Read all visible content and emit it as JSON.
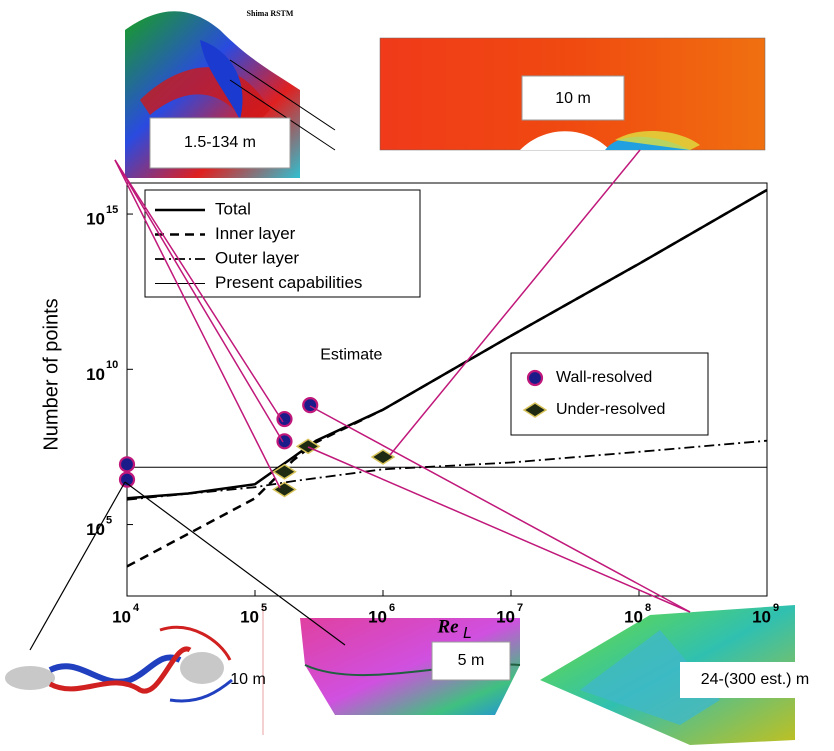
{
  "chart_data": {
    "type": "line",
    "ylabel": "Number of points",
    "xlabel": "Re",
    "xlabel_sub": "L",
    "log_x": true,
    "log_y": true,
    "xlim": [
      10000,
      1000000000
    ],
    "ylim": [
      500,
      1e+16
    ],
    "xticks": [
      {
        "value": 10000,
        "label": "10",
        "sup": "4"
      },
      {
        "value": 100000,
        "label": "10",
        "sup": "5"
      },
      {
        "value": 1000000,
        "label": "10",
        "sup": "6"
      },
      {
        "value": 10000000,
        "label": "10",
        "sup": "7"
      },
      {
        "value": 100000000,
        "label": "10",
        "sup": "8"
      },
      {
        "value": 1000000000,
        "label": "10",
        "sup": "9"
      }
    ],
    "yticks": [
      {
        "value": 100000,
        "label": "10",
        "sup": "5"
      },
      {
        "value": 10000000000,
        "label": "10",
        "sup": "10"
      },
      {
        "value": 1000000000000000.0,
        "label": "10",
        "sup": "15"
      }
    ],
    "series": [
      {
        "name": "Total",
        "style": "solid",
        "color": "#000000",
        "legend": "upper left",
        "x": [
          10000,
          30000,
          100000,
          200000,
          300000,
          1000000,
          10000000,
          100000000,
          1000000000
        ],
        "values": [
          700000,
          1000000,
          2000000,
          15000000,
          50000000,
          500000000,
          120000000000,
          25000000000000,
          6000000000000000.0
        ]
      },
      {
        "name": "Inner layer",
        "style": "dashed",
        "color": "#000000",
        "legend": "upper left",
        "x": [
          10000,
          30000,
          100000,
          200000,
          300000,
          1000000,
          10000000,
          100000000,
          1000000000
        ],
        "values": [
          4500,
          50000,
          700000,
          12000000,
          45000000,
          500000000,
          120000000000,
          25000000000000,
          6000000000000000.0
        ]
      },
      {
        "name": "Outer layer",
        "style": "dashdot",
        "color": "#000000",
        "legend": "upper left",
        "x": [
          10000,
          100000,
          200000,
          1000000,
          10000000,
          100000000,
          1000000000
        ],
        "values": [
          630000,
          1600000,
          2500000,
          6000000,
          10000000,
          22000000,
          50000000
        ]
      },
      {
        "name": "Present capabilities",
        "style": "thin",
        "color": "#000000",
        "legend": "upper left",
        "x": [
          10000,
          1000000000
        ],
        "values": [
          7000000,
          7000000
        ]
      },
      {
        "name": "Wall-resolved",
        "marker": "circle",
        "color": "#1b1b8a",
        "edge": "#c0187a",
        "legend": "center right",
        "x": [
          10000,
          10000,
          170000,
          170000,
          270000
        ],
        "values": [
          8700000,
          2800000,
          250000000,
          48000000,
          700000000
        ]
      },
      {
        "name": "Under-resolved",
        "marker": "diamond",
        "color": "#1e2a12",
        "edge": "#d8c45a",
        "legend": "center right",
        "x": [
          170000,
          170000,
          260000,
          1000000
        ],
        "values": [
          1350000,
          5000000,
          33000000,
          15000000
        ]
      }
    ],
    "annotations": [
      {
        "text": "Estimate",
        "x": 270000,
        "y": 700000000
      }
    ]
  },
  "insets": [
    {
      "label": "1.5-134 m",
      "caption": "Shima RSTM"
    },
    {
      "label": "10 m"
    },
    {
      "label": "10 m"
    },
    {
      "label": "5 m"
    },
    {
      "label": "24-(300 est.) m"
    }
  ]
}
